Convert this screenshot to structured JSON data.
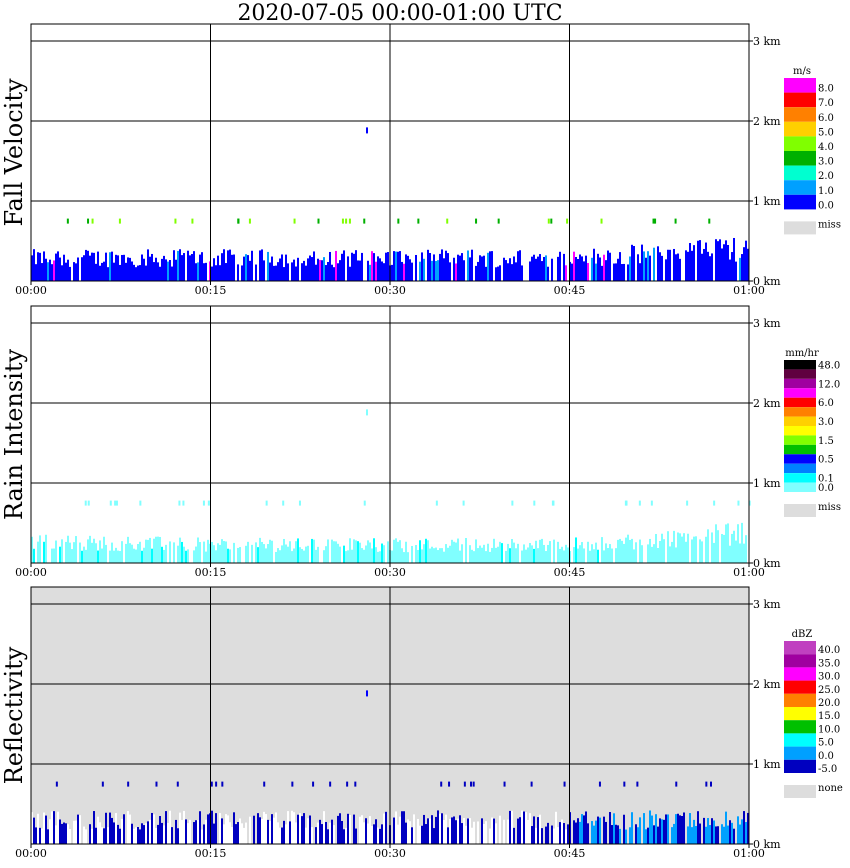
{
  "title": "2020-07-05   00:00-01:00 UTC",
  "chart_data": [
    {
      "type": "heatmap",
      "ylabel": "Fall Velocity",
      "x_ticks": [
        "00:00",
        "00:15",
        "00:30",
        "00:45",
        "01:00"
      ],
      "y_ticks": [
        "0 km",
        "1 km",
        "2 km",
        "3 km"
      ],
      "xlim": [
        "00:00",
        "01:00"
      ],
      "ylim_km": [
        0,
        3.2
      ],
      "background": "#ffffff",
      "grid": true,
      "legend_position": "right",
      "legend_title": "m/s",
      "legend": [
        {
          "label": "8.0",
          "color": "#ff00ff"
        },
        {
          "label": "7.0",
          "color": "#ff0000"
        },
        {
          "label": "6.0",
          "color": "#ff8000"
        },
        {
          "label": "5.0",
          "color": "#ffd000"
        },
        {
          "label": "4.0",
          "color": "#80ff00"
        },
        {
          "label": "3.0",
          "color": "#00b000"
        },
        {
          "label": "2.0",
          "color": "#00ffd0"
        },
        {
          "label": "1.0",
          "color": "#00a0ff"
        },
        {
          "label": "0.0",
          "color": "#0000ff"
        }
      ],
      "legend_extra": {
        "label": "miss",
        "color": "#dddddd"
      },
      "echo_top_km_estimate": [
        0.38,
        0.38,
        0.38,
        0.38,
        0.55
      ]
    },
    {
      "type": "heatmap",
      "ylabel": "Rain Intensity",
      "x_ticks": [
        "00:00",
        "00:15",
        "00:30",
        "00:45",
        "01:00"
      ],
      "y_ticks": [
        "0 km",
        "1 km",
        "2 km",
        "3 km"
      ],
      "xlim": [
        "00:00",
        "01:00"
      ],
      "ylim_km": [
        0,
        3.2
      ],
      "background": "#ffffff",
      "grid": true,
      "legend_position": "right",
      "legend_title": "mm/hr",
      "legend": [
        {
          "label": "48.0",
          "color": "#000000"
        },
        {
          "label": "",
          "color": "#600040"
        },
        {
          "label": "12.0",
          "color": "#a000a0"
        },
        {
          "label": "",
          "color": "#ff00ff"
        },
        {
          "label": "6.0",
          "color": "#ff0000"
        },
        {
          "label": "",
          "color": "#ff8000"
        },
        {
          "label": "3.0",
          "color": "#ffd000"
        },
        {
          "label": "",
          "color": "#ffff00"
        },
        {
          "label": "1.5",
          "color": "#80ff00"
        },
        {
          "label": "",
          "color": "#00c000"
        },
        {
          "label": "0.5",
          "color": "#0000ff"
        },
        {
          "label": "",
          "color": "#0080ff"
        },
        {
          "label": "0.1",
          "color": "#00ffff"
        },
        {
          "label": "0.0",
          "color": "#80ffff"
        }
      ],
      "legend_extra": {
        "label": "miss",
        "color": "#dddddd"
      },
      "echo_top_km_estimate": [
        0.35,
        0.3,
        0.3,
        0.3,
        0.5
      ]
    },
    {
      "type": "heatmap",
      "ylabel": "Reflectivity",
      "x_ticks": [
        "00:00",
        "00:15",
        "00:30",
        "00:45",
        "01:00"
      ],
      "y_ticks": [
        "0 km",
        "1 km",
        "2 km",
        "3 km"
      ],
      "xlim": [
        "00:00",
        "01:00"
      ],
      "ylim_km": [
        0,
        3.2
      ],
      "background": "#dddddd",
      "grid": true,
      "legend_position": "right",
      "legend_title": "dBZ",
      "legend": [
        {
          "label": "40.0",
          "color": "#c040c0"
        },
        {
          "label": "35.0",
          "color": "#a000a0"
        },
        {
          "label": "30.0",
          "color": "#ff00ff"
        },
        {
          "label": "25.0",
          "color": "#ff0000"
        },
        {
          "label": "20.0",
          "color": "#ff8000"
        },
        {
          "label": "15.0",
          "color": "#ffff00"
        },
        {
          "label": "10.0",
          "color": "#00c000"
        },
        {
          "label": "5.0",
          "color": "#00ffff"
        },
        {
          "label": "0.0",
          "color": "#00a0ff"
        },
        {
          "label": "-5.0",
          "color": "#0000c0"
        }
      ],
      "legend_extra": {
        "label": "none",
        "color": "#dddddd"
      },
      "echo_top_km_estimate": [
        0.4,
        0.4,
        0.4,
        0.4,
        0.4
      ]
    }
  ]
}
